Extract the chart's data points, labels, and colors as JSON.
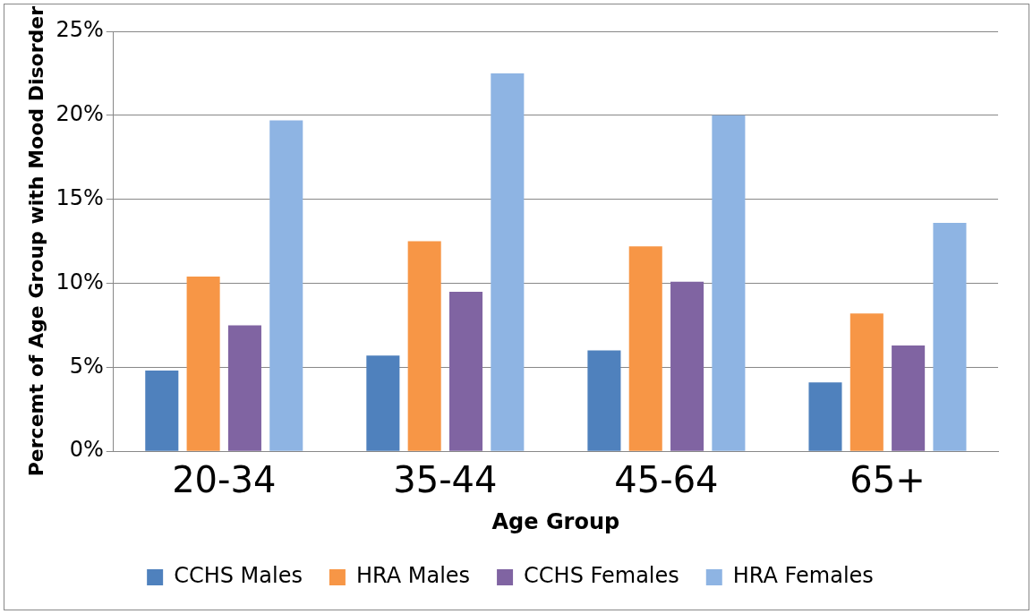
{
  "chart_data": {
    "type": "bar",
    "xlabel": "Age Group",
    "ylabel": "Percemt of Age Group with Mood Disorder",
    "categories": [
      "20-34",
      "35-44",
      "45-64",
      "65+"
    ],
    "series": [
      {
        "name": "CCHS Males",
        "color": "#4f81bd",
        "values": [
          4.8,
          5.7,
          6.0,
          4.1
        ]
      },
      {
        "name": "HRA Males",
        "color": "#f79646",
        "values": [
          10.4,
          12.5,
          12.2,
          8.2
        ]
      },
      {
        "name": "CCHS Females",
        "color": "#8064a2",
        "values": [
          7.5,
          9.5,
          10.1,
          6.3
        ]
      },
      {
        "name": "HRA Females",
        "color": "#8eb4e3",
        "values": [
          19.7,
          22.5,
          20.0,
          13.6
        ]
      }
    ],
    "ylim": [
      0,
      25
    ],
    "yticks": [
      {
        "value": 0,
        "label": "0%"
      },
      {
        "value": 5,
        "label": "5%"
      },
      {
        "value": 10,
        "label": "10%"
      },
      {
        "value": 15,
        "label": "15%"
      },
      {
        "value": 20,
        "label": "20%"
      },
      {
        "value": 25,
        "label": "25%"
      }
    ],
    "grid": "y",
    "legend": "bottom"
  }
}
